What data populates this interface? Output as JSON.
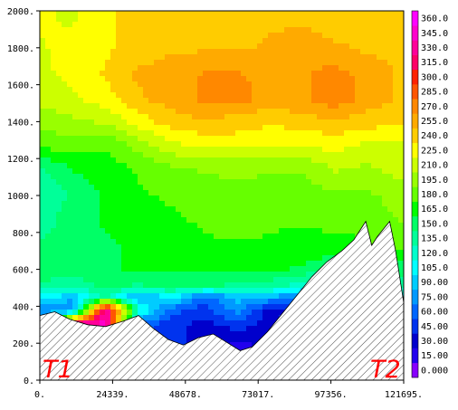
{
  "chart_data": {
    "type": "heatmap",
    "title": "",
    "xlabel": "",
    "ylabel": "",
    "xlim": [
      0,
      121695
    ],
    "ylim": [
      0,
      2000
    ],
    "x_tick_labels": [
      "0.",
      "24339.",
      "48678.",
      "73017.",
      "97356.",
      "121695."
    ],
    "x_tick_values": [
      0,
      24339,
      48678,
      73017,
      97356,
      121695
    ],
    "y_tick_labels": [
      "0.",
      "200.",
      "400.",
      "600.",
      "800.",
      "1000.",
      "1200.",
      "1400.",
      "1600.",
      "1800.",
      "2000."
    ],
    "y_tick_values": [
      0,
      200,
      400,
      600,
      800,
      1000,
      1200,
      1400,
      1600,
      1800,
      2000
    ],
    "colorbar": {
      "min": -7.5,
      "max": 367.5,
      "step": 15,
      "tick_labels": [
        "0.000",
        "15.00",
        "30.00",
        "45.00",
        "60.00",
        "75.00",
        "90.00",
        "105.0",
        "120.0",
        "135.0",
        "150.0",
        "165.0",
        "180.0",
        "195.0",
        "210.0",
        "225.0",
        "240.0",
        "255.0",
        "270.0",
        "285.0",
        "300.0",
        "315.0",
        "330.0",
        "345.0",
        "360.0"
      ],
      "colors": [
        "#8800ff",
        "#2200ee",
        "#0000cc",
        "#0033ee",
        "#0066ff",
        "#0099ff",
        "#00ccff",
        "#00ffff",
        "#00ffcc",
        "#00ff99",
        "#00ff66",
        "#00ff00",
        "#66ff00",
        "#99ff00",
        "#ccff00",
        "#ffff00",
        "#ffcc00",
        "#ffaa00",
        "#ff8800",
        "#ff5500",
        "#ff2200",
        "#ff0066",
        "#ff0099",
        "#ff00cc",
        "#ff00ff"
      ]
    },
    "terrain_profile": {
      "x": [
        0,
        5000,
        10000,
        16000,
        22000,
        28000,
        33000,
        38000,
        43000,
        48000,
        53000,
        58000,
        63000,
        67000,
        71000,
        76000,
        81000,
        86000,
        91000,
        96000,
        101000,
        105000,
        109000,
        111000,
        113000,
        117000,
        119000,
        121695
      ],
      "y": [
        350,
        370,
        330,
        300,
        290,
        320,
        350,
        280,
        220,
        190,
        230,
        250,
        200,
        160,
        180,
        260,
        360,
        460,
        560,
        640,
        700,
        760,
        860,
        730,
        780,
        860,
        700,
        420
      ]
    },
    "field_rows": [
      {
        "y": 1950,
        "values": [
          220,
          215,
          230,
          240,
          245,
          245,
          240,
          245,
          245,
          240,
          240,
          245
        ]
      },
      {
        "y": 1800,
        "values": [
          215,
          225,
          230,
          240,
          245,
          245,
          245,
          250,
          255,
          250,
          245,
          245
        ]
      },
      {
        "y": 1650,
        "values": [
          215,
          220,
          235,
          250,
          255,
          265,
          265,
          255,
          260,
          270,
          255,
          245
        ]
      },
      {
        "y": 1520,
        "values": [
          210,
          215,
          225,
          245,
          255,
          265,
          270,
          255,
          260,
          272,
          255,
          245
        ]
      },
      {
        "y": 1400,
        "values": [
          190,
          200,
          205,
          225,
          240,
          245,
          240,
          235,
          240,
          245,
          240,
          235
        ]
      },
      {
        "y": 1280,
        "values": [
          180,
          180,
          175,
          195,
          215,
          225,
          225,
          220,
          220,
          225,
          215,
          215
        ]
      },
      {
        "y": 1150,
        "values": [
          140,
          160,
          165,
          175,
          185,
          190,
          190,
          190,
          190,
          205,
          200,
          210
        ]
      },
      {
        "y": 1000,
        "values": [
          130,
          145,
          160,
          170,
          175,
          180,
          185,
          180,
          180,
          185,
          185,
          195
        ]
      },
      {
        "y": 870,
        "values": [
          135,
          150,
          160,
          165,
          170,
          175,
          180,
          175,
          175,
          180,
          180,
          190
        ]
      },
      {
        "y": 720,
        "values": [
          145,
          150,
          155,
          160,
          165,
          170,
          170,
          170,
          165,
          165,
          170,
          175
        ]
      },
      {
        "y": 600,
        "values": [
          150,
          155,
          155,
          160,
          160,
          160,
          160,
          160,
          155,
          145,
          150,
          150
        ]
      },
      {
        "y": 510,
        "values": [
          140,
          130,
          150,
          140,
          150,
          145,
          140,
          135,
          120,
          90,
          110,
          130
        ]
      },
      {
        "y": 450,
        "values": [
          100,
          90,
          130,
          75,
          105,
          60,
          90,
          85,
          60,
          60,
          80,
          100
        ]
      },
      {
        "y": 380,
        "values": [
          75,
          60,
          345,
          120,
          60,
          45,
          75,
          30,
          45,
          60,
          75,
          90
        ]
      },
      {
        "y": 300,
        "values": [
          60,
          345,
          345,
          60,
          45,
          30,
          45,
          30,
          60,
          75,
          90,
          90
        ]
      },
      {
        "y": 200,
        "values": [
          60,
          345,
          345,
          60,
          45,
          30,
          20,
          25,
          60,
          75,
          90,
          90
        ]
      }
    ],
    "field_x": [
      0,
      11000,
      22000,
      33000,
      44000,
      55000,
      66000,
      77000,
      88000,
      99000,
      110000,
      121695
    ],
    "endpoint_labels": [
      {
        "text": "T1",
        "position": "bottom-left"
      },
      {
        "text": "T2",
        "position": "bottom-right"
      }
    ]
  }
}
